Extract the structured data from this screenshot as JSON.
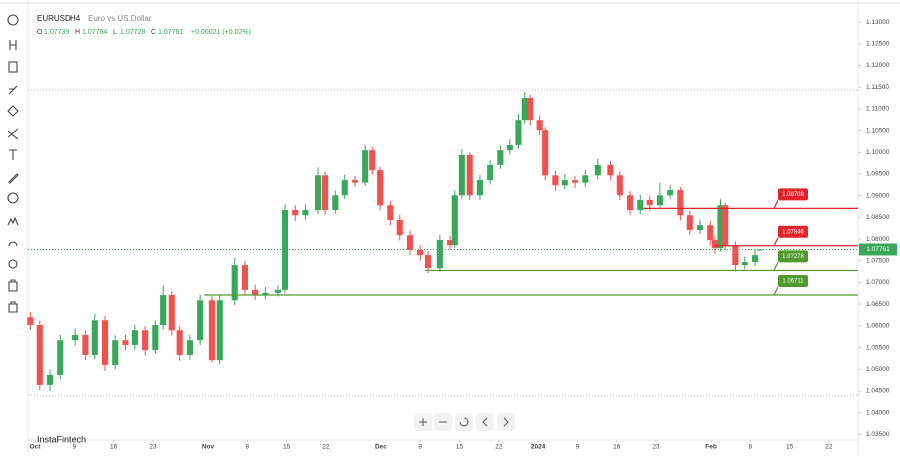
{
  "chart_data": {
    "type": "candlestick",
    "symbol": "EURUSD",
    "interval": "H4",
    "name": "Euro vs US Dollar",
    "ohlc_labels": [
      "O",
      "H",
      "L",
      "C"
    ],
    "change": "+0.00021 (+0.02%)",
    "watermark": "InstaFintech",
    "up_color": "#3aa85a",
    "down_color": "#ef5350",
    "grid": false,
    "xlim": [
      -0.9,
      104.7
    ],
    "ylim": [
      1.0337,
      1.1351
    ],
    "yticks": [
      {
        "value": 1.035,
        "label": "1.03500"
      },
      {
        "value": 1.04,
        "label": "1.04000"
      },
      {
        "value": 1.045,
        "label": "1.04500"
      },
      {
        "value": 1.05,
        "label": "1.05000"
      },
      {
        "value": 1.055,
        "label": "1.05500"
      },
      {
        "value": 1.06,
        "label": "1.06000"
      },
      {
        "value": 1.065,
        "label": "1.06500"
      },
      {
        "value": 1.07,
        "label": "1.07000"
      },
      {
        "value": 1.075,
        "label": "1.07500"
      },
      {
        "value": 1.08,
        "label": "1.08000"
      },
      {
        "value": 1.085,
        "label": "1.08500"
      },
      {
        "value": 1.09,
        "label": "1.09000"
      },
      {
        "value": 1.095,
        "label": "1.09500"
      },
      {
        "value": 1.1,
        "label": "1.10000"
      },
      {
        "value": 1.105,
        "label": "1.10500"
      },
      {
        "value": 1.11,
        "label": "1.11000"
      },
      {
        "value": 1.115,
        "label": "1.11500"
      },
      {
        "value": 1.12,
        "label": "1.12000"
      },
      {
        "value": 1.125,
        "label": "1.12500"
      },
      {
        "value": 1.13,
        "label": "1.13000"
      }
    ],
    "xticks": [
      {
        "value": 0,
        "label": "Oct"
      },
      {
        "value": 5,
        "label": "9"
      },
      {
        "value": 10,
        "label": "16"
      },
      {
        "value": 15,
        "label": "23"
      },
      {
        "value": 22,
        "label": "Nov"
      },
      {
        "value": 27,
        "label": "8"
      },
      {
        "value": 32,
        "label": "15"
      },
      {
        "value": 37,
        "label": "22"
      },
      {
        "value": 44,
        "label": "Dec"
      },
      {
        "value": 49,
        "label": "8"
      },
      {
        "value": 54,
        "label": "15"
      },
      {
        "value": 59,
        "label": "22"
      },
      {
        "value": 64,
        "label": "2024"
      },
      {
        "value": 69,
        "label": "9"
      },
      {
        "value": 74,
        "label": "16"
      },
      {
        "value": 79,
        "label": "23"
      },
      {
        "value": 86,
        "label": "Feb"
      },
      {
        "value": 91,
        "label": "8"
      },
      {
        "value": 96,
        "label": "15"
      },
      {
        "value": 101,
        "label": "22"
      }
    ],
    "x": [
      -0.6,
      0.6,
      1.9,
      3.2,
      5.1,
      6.4,
      7.6,
      8.9,
      10.2,
      11.5,
      12.7,
      14.0,
      15.3,
      16.3,
      17.4,
      18.4,
      19.7,
      21.0,
      22.5,
      23.5,
      25.4,
      26.7,
      28.0,
      29.3,
      30.9,
      31.8,
      33.1,
      34.4,
      36.0,
      36.9,
      38.2,
      39.4,
      40.7,
      42.0,
      42.9,
      43.9,
      45.2,
      46.4,
      47.7,
      49.0,
      50.0,
      51.5,
      52.8,
      53.4,
      54.3,
      55.3,
      56.6,
      57.9,
      59.2,
      60.4,
      61.5,
      62.3,
      63.0,
      64.2,
      64.9,
      66.2,
      67.4,
      68.7,
      70.0,
      71.6,
      73.2,
      74.4,
      75.7,
      77.0,
      78.2,
      79.5,
      80.8,
      82.1,
      83.3,
      84.6,
      85.9,
      86.5,
      87.2,
      87.8,
      89.1,
      90.3,
      91.6,
      92.2
    ],
    "ohlc": [
      [
        1.062,
        1.0632,
        1.059,
        1.0602
      ],
      [
        1.0602,
        1.0612,
        1.0452,
        1.0464
      ],
      [
        1.0464,
        1.0499,
        1.045,
        1.0487
      ],
      [
        1.0487,
        1.0579,
        1.0477,
        1.0567
      ],
      [
        1.0567,
        1.0594,
        1.0555,
        1.0579
      ],
      [
        1.0579,
        1.059,
        1.0521,
        1.0533
      ],
      [
        1.0533,
        1.0628,
        1.0523,
        1.0613
      ],
      [
        1.0613,
        1.0623,
        1.0496,
        1.051
      ],
      [
        1.051,
        1.0578,
        1.05,
        1.0567
      ],
      [
        1.0567,
        1.058,
        1.0544,
        1.0556
      ],
      [
        1.0556,
        1.0602,
        1.0545,
        1.059
      ],
      [
        1.059,
        1.06,
        1.0532,
        1.0544
      ],
      [
        1.0544,
        1.0613,
        1.0535,
        1.0602
      ],
      [
        1.0602,
        1.0694,
        1.0592,
        1.0671
      ],
      [
        1.0671,
        1.068,
        1.0578,
        1.059
      ],
      [
        1.059,
        1.06,
        1.052,
        1.0533
      ],
      [
        1.0533,
        1.058,
        1.0522,
        1.0567
      ],
      [
        1.0567,
        1.0672,
        1.0556,
        1.0659
      ],
      [
        1.0659,
        1.0668,
        1.0516,
        1.0521
      ],
      [
        1.0521,
        1.067,
        1.0512,
        1.0659
      ],
      [
        1.0659,
        1.0757,
        1.0648,
        1.074
      ],
      [
        1.074,
        1.075,
        1.0672,
        1.0683
      ],
      [
        1.0683,
        1.0695,
        1.066,
        1.0671
      ],
      [
        1.0671,
        1.069,
        1.0662,
        1.0676
      ],
      [
        1.0676,
        1.0694,
        1.0668,
        1.0683
      ],
      [
        1.0683,
        1.088,
        1.0675,
        1.0867
      ],
      [
        1.0867,
        1.0878,
        1.0842,
        1.0855
      ],
      [
        1.0855,
        1.088,
        1.0845,
        1.0867
      ],
      [
        1.0867,
        1.0965,
        1.0858,
        1.0947
      ],
      [
        1.0947,
        1.0955,
        1.0855,
        1.0867
      ],
      [
        1.0867,
        1.0912,
        1.0858,
        1.0901
      ],
      [
        1.0901,
        1.0948,
        1.0892,
        1.0936
      ],
      [
        1.0936,
        1.0946,
        1.092,
        1.093
      ],
      [
        1.093,
        1.1017,
        1.0922,
        1.1005
      ],
      [
        1.1005,
        1.1012,
        1.0948,
        1.0959
      ],
      [
        1.0959,
        1.0966,
        1.0866,
        1.0878
      ],
      [
        1.0878,
        1.0888,
        1.0832,
        1.0844
      ],
      [
        1.0844,
        1.0856,
        1.0797,
        1.0809
      ],
      [
        1.0809,
        1.082,
        1.0763,
        1.0775
      ],
      [
        1.0775,
        1.0786,
        1.075,
        1.0763
      ],
      [
        1.0763,
        1.0772,
        1.0722,
        1.0733
      ],
      [
        1.0733,
        1.081,
        1.0725,
        1.0798
      ],
      [
        1.0798,
        1.0808,
        1.0775,
        1.0786
      ],
      [
        1.0786,
        1.0912,
        1.0778,
        1.0901
      ],
      [
        1.0901,
        1.1008,
        1.0892,
        1.0994
      ],
      [
        1.0994,
        1.1,
        1.089,
        1.0901
      ],
      [
        1.0901,
        1.0948,
        1.089,
        1.0936
      ],
      [
        1.0936,
        1.0982,
        1.0926,
        1.0971
      ],
      [
        1.0971,
        1.1016,
        1.0962,
        1.1005
      ],
      [
        1.1005,
        1.103,
        1.0995,
        1.1017
      ],
      [
        1.1017,
        1.1088,
        1.1008,
        1.1074
      ],
      [
        1.1074,
        1.1139,
        1.1066,
        1.1125
      ],
      [
        1.1125,
        1.1132,
        1.1062,
        1.1074
      ],
      [
        1.1074,
        1.1085,
        1.104,
        1.1051
      ],
      [
        1.1051,
        1.1058,
        1.0935,
        1.0947
      ],
      [
        1.0947,
        1.0958,
        1.0912,
        1.0924
      ],
      [
        1.0924,
        1.095,
        1.0915,
        1.0936
      ],
      [
        1.0936,
        1.0946,
        1.0918,
        1.093
      ],
      [
        1.093,
        1.096,
        1.092,
        1.0947
      ],
      [
        1.0947,
        1.0985,
        1.0938,
        1.0971
      ],
      [
        1.0971,
        1.098,
        1.0935,
        1.0947
      ],
      [
        1.0947,
        1.0956,
        1.089,
        1.0901
      ],
      [
        1.0901,
        1.091,
        1.0855,
        1.0867
      ],
      [
        1.0867,
        1.0902,
        1.0858,
        1.089
      ],
      [
        1.089,
        1.09,
        1.0866,
        1.0878
      ],
      [
        1.0878,
        1.093,
        1.087,
        1.0901
      ],
      [
        1.0901,
        1.0925,
        1.0892,
        1.0913
      ],
      [
        1.0913,
        1.092,
        1.0843,
        1.0855
      ],
      [
        1.0855,
        1.0866,
        1.081,
        1.0821
      ],
      [
        1.0821,
        1.0845,
        1.0812,
        1.0832
      ],
      [
        1.0832,
        1.0842,
        1.0786,
        1.0798
      ],
      [
        1.0798,
        1.0808,
        1.0766,
        1.0779
      ],
      [
        1.0779,
        1.0892,
        1.0772,
        1.0878
      ],
      [
        1.0878,
        1.0884,
        1.0775,
        1.0786
      ],
      [
        1.0786,
        1.0795,
        1.0725,
        1.074
      ],
      [
        1.074,
        1.076,
        1.073,
        1.0747
      ],
      [
        1.0747,
        1.0778,
        1.0738,
        1.0763
      ],
      [
        1.07739,
        1.07764,
        1.07728,
        1.07761
      ]
    ],
    "levels": [
      {
        "value": 1.08708,
        "from": 77.4,
        "color": "#e0242a"
      },
      {
        "value": 1.07846,
        "from": 86.3,
        "color": "#e0242a"
      },
      {
        "value": 1.07278,
        "from": 49.6,
        "color": "#4f9a2c"
      },
      {
        "value": 1.06711,
        "from": 21.5,
        "color": "#4f9a2c"
      }
    ]
  }
}
